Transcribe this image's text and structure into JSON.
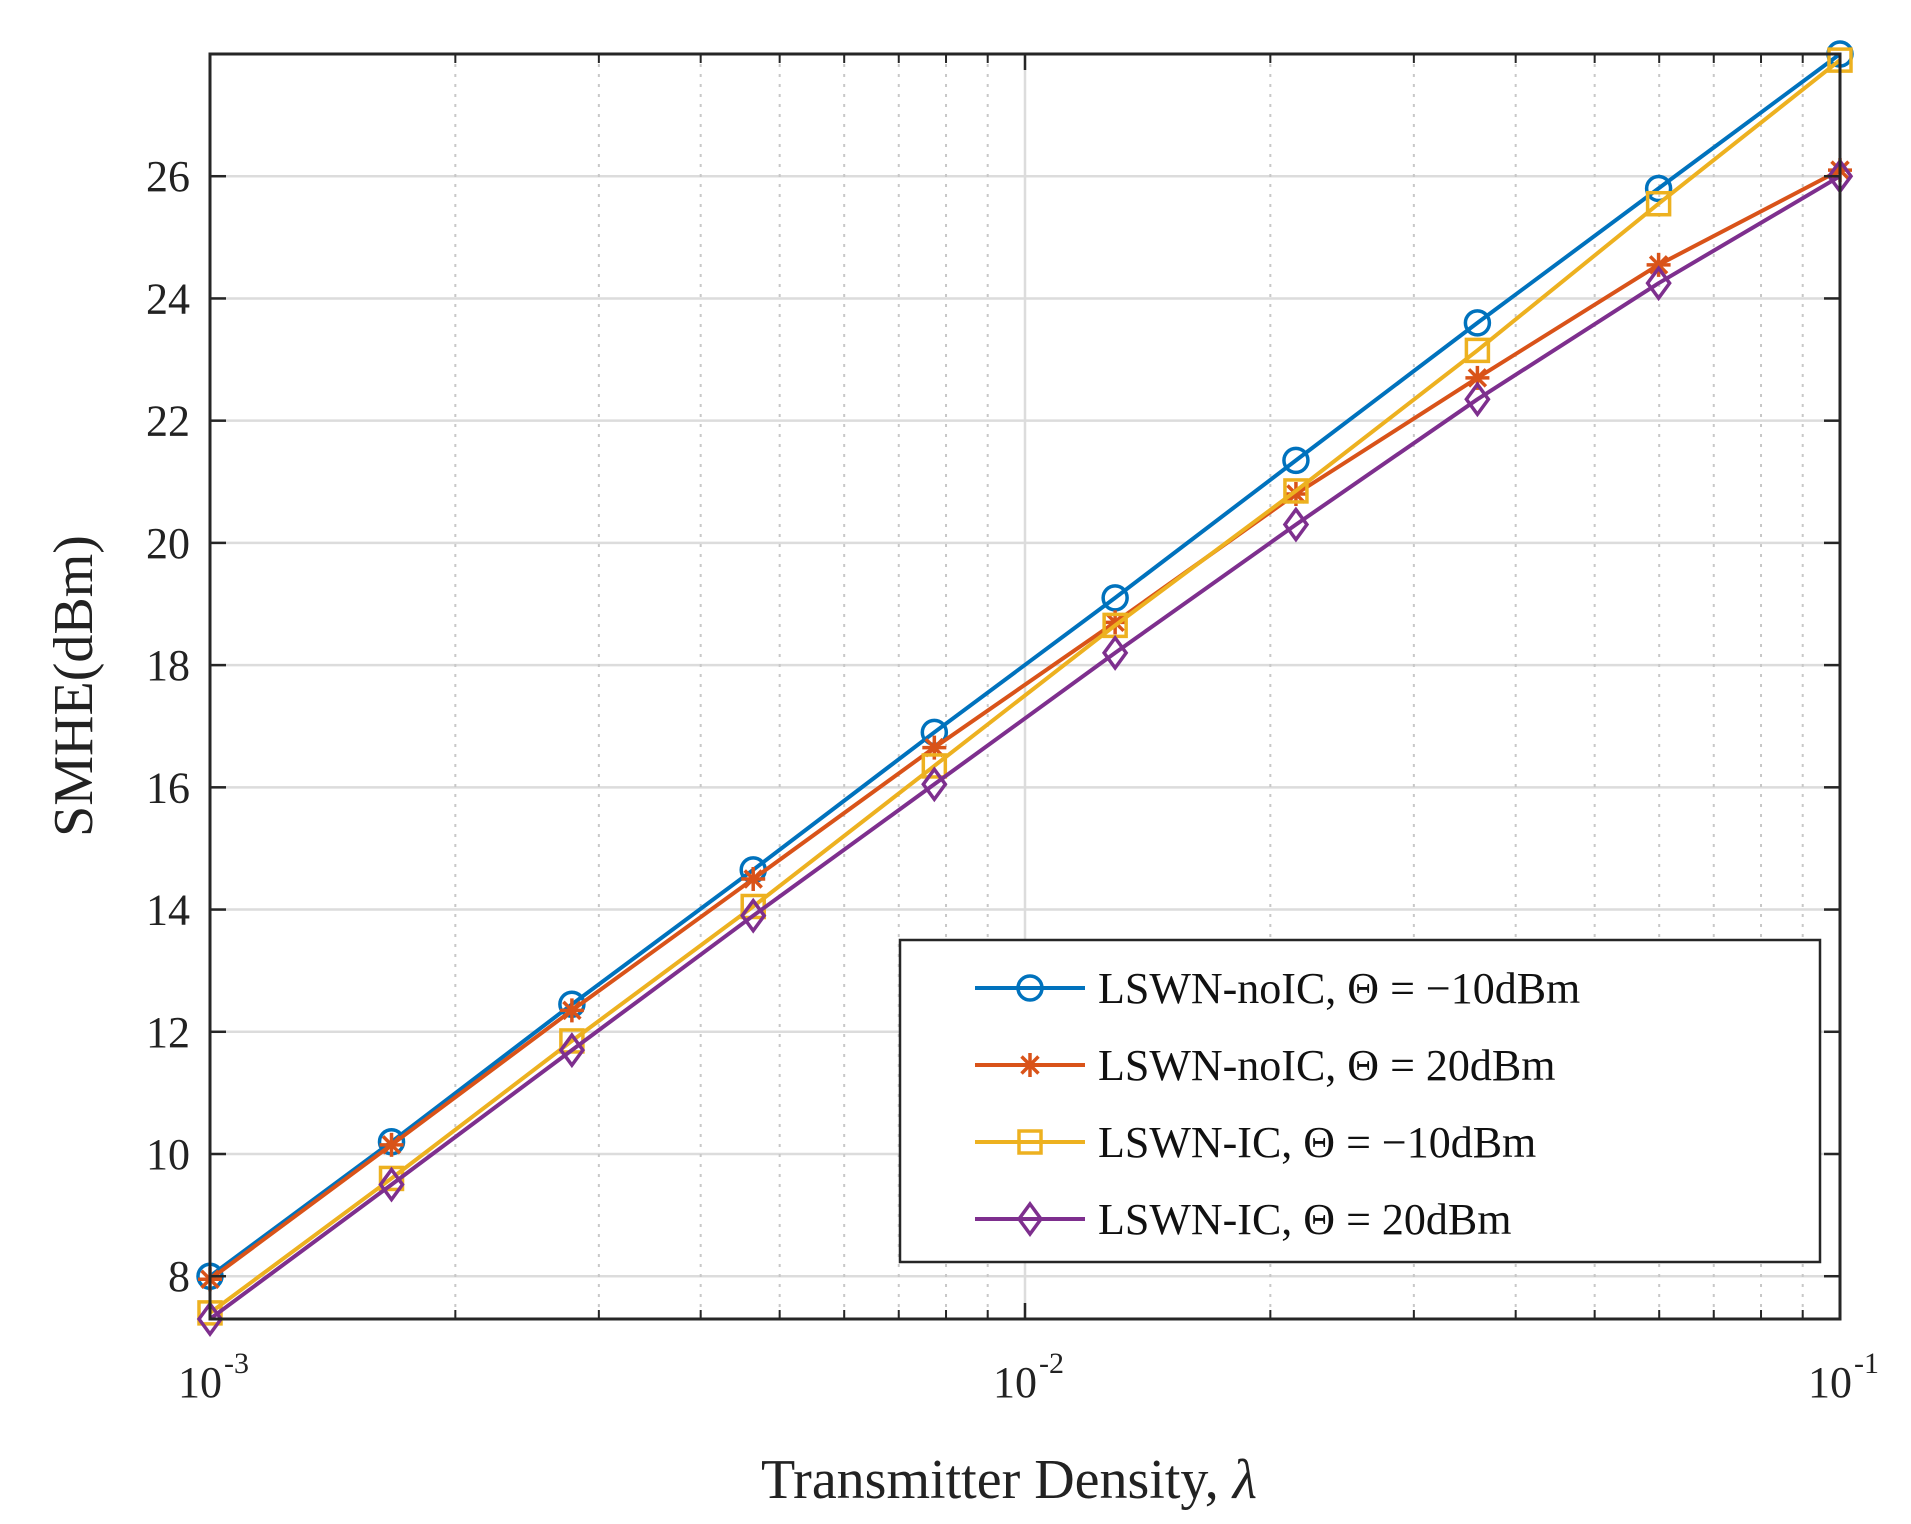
{
  "chart_data": {
    "type": "line",
    "title": "",
    "xlabel": "Transmitter Density,",
    "xlabel_symbol": "λ",
    "ylabel": "SMHE(dBm)",
    "xscale": "log",
    "xlim": [
      0.001,
      0.1
    ],
    "ylim": [
      7.3,
      28
    ],
    "grid": true,
    "x_ticks": [
      {
        "base": "10",
        "exp": "-3",
        "value": 0.001
      },
      {
        "base": "10",
        "exp": "-2",
        "value": 0.01
      },
      {
        "base": "10",
        "exp": "-1",
        "value": 0.1
      }
    ],
    "y_ticks": [
      8,
      10,
      12,
      14,
      16,
      18,
      20,
      22,
      24,
      26
    ],
    "x": [
      0.001,
      0.00167,
      0.00278,
      0.00464,
      0.00774,
      0.0129,
      0.0215,
      0.0359,
      0.0599,
      0.1
    ],
    "legend_position": "bottom-right",
    "series": [
      {
        "name": "LSWN-noIC, Θ = −10dBm",
        "color": "#0072BD",
        "marker": "circle",
        "values": [
          8.0,
          10.2,
          12.45,
          14.65,
          16.9,
          19.1,
          21.35,
          23.6,
          25.8,
          28.0
        ]
      },
      {
        "name": "LSWN-noIC, Θ = 20dBm",
        "color": "#D95319",
        "marker": "star",
        "values": [
          7.95,
          10.15,
          12.35,
          14.5,
          16.65,
          18.7,
          20.8,
          22.7,
          24.55,
          26.1
        ]
      },
      {
        "name": "LSWN-IC, Θ = −10dBm",
        "color": "#EDB120",
        "marker": "square",
        "values": [
          7.4,
          9.6,
          11.85,
          14.05,
          16.35,
          18.65,
          20.85,
          23.15,
          25.55,
          27.9
        ]
      },
      {
        "name": "LSWN-IC, Θ = 20dBm",
        "color": "#7E2F8E",
        "marker": "diamond",
        "values": [
          7.3,
          9.5,
          11.7,
          13.9,
          16.05,
          18.2,
          20.3,
          22.35,
          24.25,
          26.0
        ]
      }
    ]
  }
}
